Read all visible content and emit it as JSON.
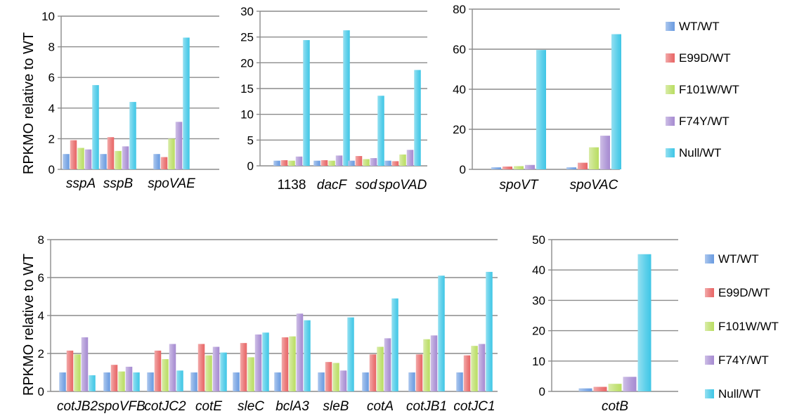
{
  "colors": {
    "WT/WT": "#6a9be0",
    "E99D/WT": "#e86565",
    "F101W/WT": "#b9dd62",
    "F74Y/WT": "#a68ad1",
    "Null/WT": "#3fc6e6"
  },
  "ylabel": "RPKMO relative to WT",
  "legend": [
    "WT/WT",
    "E99D/WT",
    "F101W/WT",
    "F74Y/WT",
    "Null/WT"
  ],
  "chart_data": [
    {
      "type": "bar",
      "categories": [
        "sspA",
        "sspB",
        "spoVAE"
      ],
      "ylabel": "RPKMO relative to WT",
      "ylim": [
        0,
        10
      ],
      "yticks": [
        0,
        2,
        4,
        6,
        8,
        10
      ],
      "series": [
        {
          "name": "WT/WT",
          "values": [
            1.0,
            1.0,
            1.0
          ]
        },
        {
          "name": "E99D/WT",
          "values": [
            1.9,
            2.1,
            0.8
          ]
        },
        {
          "name": "F101W/WT",
          "values": [
            1.4,
            1.2,
            2.0
          ]
        },
        {
          "name": "F74Y/WT",
          "values": [
            1.3,
            1.5,
            3.1
          ]
        },
        {
          "name": "Null/WT",
          "values": [
            5.5,
            4.4,
            8.6
          ]
        }
      ]
    },
    {
      "type": "bar",
      "categories": [
        "1138",
        "dacF",
        "sod",
        "spoVAD"
      ],
      "ylim": [
        0,
        30
      ],
      "yticks": [
        0,
        5,
        10,
        15,
        20,
        25,
        30
      ],
      "series": [
        {
          "name": "WT/WT",
          "values": [
            1.0,
            1.0,
            1.0,
            1.0
          ]
        },
        {
          "name": "E99D/WT",
          "values": [
            1.1,
            1.1,
            1.9,
            0.9
          ]
        },
        {
          "name": "F101W/WT",
          "values": [
            1.0,
            1.0,
            1.3,
            2.2
          ]
        },
        {
          "name": "F74Y/WT",
          "values": [
            1.8,
            2.0,
            1.5,
            3.1
          ]
        },
        {
          "name": "Null/WT",
          "values": [
            24.4,
            26.3,
            13.6,
            18.6
          ]
        }
      ]
    },
    {
      "type": "bar",
      "categories": [
        "spoVT",
        "spoVAC"
      ],
      "ylim": [
        0,
        80
      ],
      "yticks": [
        0,
        20,
        40,
        60,
        80
      ],
      "series": [
        {
          "name": "WT/WT",
          "values": [
            1.0,
            1.0
          ]
        },
        {
          "name": "E99D/WT",
          "values": [
            1.4,
            3.3
          ]
        },
        {
          "name": "F101W/WT",
          "values": [
            1.6,
            11.0
          ]
        },
        {
          "name": "F74Y/WT",
          "values": [
            2.2,
            16.8
          ]
        },
        {
          "name": "Null/WT",
          "values": [
            59.6,
            67.5
          ]
        }
      ]
    },
    {
      "type": "bar",
      "categories": [
        "cotJB2",
        "spoVFB",
        "cotJC2",
        "cotE",
        "sleC",
        "bclA3",
        "sleB",
        "cotA",
        "cotJB1",
        "cotJC1"
      ],
      "ylabel": "RPKMO relative to WT",
      "ylim": [
        0,
        8
      ],
      "yticks": [
        0,
        2,
        4,
        6,
        8
      ],
      "series": [
        {
          "name": "WT/WT",
          "values": [
            1.0,
            1.0,
            1.0,
            1.0,
            1.0,
            1.0,
            1.0,
            1.0,
            1.0,
            1.0
          ]
        },
        {
          "name": "E99D/WT",
          "values": [
            2.15,
            1.4,
            2.15,
            2.5,
            2.55,
            2.85,
            1.55,
            1.95,
            1.95,
            1.9
          ]
        },
        {
          "name": "F101W/WT",
          "values": [
            1.95,
            1.05,
            1.7,
            1.9,
            1.8,
            2.9,
            1.5,
            2.35,
            2.75,
            2.4
          ]
        },
        {
          "name": "F74Y/WT",
          "values": [
            2.85,
            1.3,
            2.5,
            2.35,
            3.0,
            4.1,
            1.1,
            2.8,
            2.95,
            2.5
          ]
        },
        {
          "name": "Null/WT",
          "values": [
            0.85,
            1.0,
            1.1,
            2.05,
            3.1,
            3.75,
            3.9,
            4.9,
            6.1,
            6.3
          ]
        }
      ]
    },
    {
      "type": "bar",
      "categories": [
        "cotB"
      ],
      "ylim": [
        0,
        50
      ],
      "yticks": [
        0,
        10,
        20,
        30,
        40,
        50
      ],
      "series": [
        {
          "name": "WT/WT",
          "values": [
            1.0
          ]
        },
        {
          "name": "E99D/WT",
          "values": [
            1.5
          ]
        },
        {
          "name": "F101W/WT",
          "values": [
            2.5
          ]
        },
        {
          "name": "F74Y/WT",
          "values": [
            4.8
          ]
        },
        {
          "name": "Null/WT",
          "values": [
            45.2
          ]
        }
      ]
    }
  ]
}
